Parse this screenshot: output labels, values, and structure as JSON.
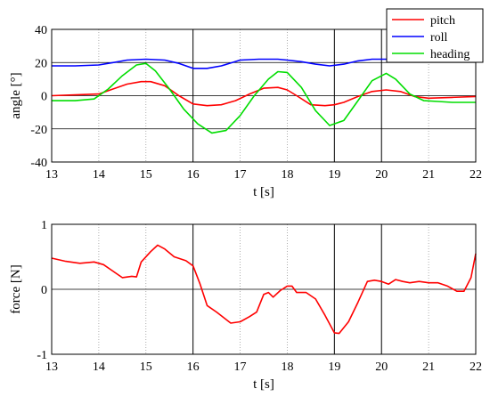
{
  "chart_data": [
    {
      "type": "line",
      "xlabel": "t [s]",
      "ylabel": "angle [°]",
      "xlim": [
        13,
        22
      ],
      "ylim": [
        -40,
        40
      ],
      "xticks": [
        13,
        14,
        15,
        16,
        17,
        18,
        19,
        20,
        21,
        22
      ],
      "yticks": [
        -40,
        -20,
        0,
        20,
        40
      ],
      "grid": "dotted vertical at each second, solid horizontal at 0 and ±20, solid vertical at 16, 19, 20",
      "legend_position": "top-right",
      "series": [
        {
          "name": "pitch",
          "color": "#ff0000",
          "x": [
            13,
            13.5,
            14,
            14.3,
            14.6,
            14.9,
            15.1,
            15.4,
            15.7,
            16,
            16.3,
            16.6,
            16.9,
            17.2,
            17.5,
            17.8,
            18,
            18.2,
            18.5,
            18.8,
            19,
            19.2,
            19.5,
            19.8,
            20.1,
            20.4,
            20.7,
            21,
            21.5,
            22
          ],
          "y": [
            0,
            0.5,
            1,
            4,
            7,
            8.5,
            8.5,
            6,
            0,
            -5,
            -6,
            -5.5,
            -3,
            1,
            4.5,
            5,
            3.5,
            0,
            -5.5,
            -6,
            -5.5,
            -4,
            -0.5,
            2.5,
            3.5,
            2.5,
            -0.5,
            -1.5,
            -1,
            -0.5
          ]
        },
        {
          "name": "roll",
          "color": "#0000ff",
          "x": [
            13,
            13.5,
            14,
            14.3,
            14.6,
            15,
            15.4,
            15.7,
            16,
            16.3,
            16.6,
            17,
            17.4,
            17.8,
            18,
            18.3,
            18.6,
            18.9,
            19.2,
            19.5,
            19.8,
            20.1,
            20.5,
            21,
            21.5,
            22
          ],
          "y": [
            18,
            18,
            18.5,
            20,
            21.5,
            22,
            21.5,
            19.5,
            16.5,
            16.5,
            18,
            21.5,
            22,
            22,
            21.5,
            20.5,
            19,
            18,
            19,
            21,
            22,
            22,
            21.5,
            21.5,
            22,
            22
          ]
        },
        {
          "name": "heading",
          "color": "#00dd00",
          "x": [
            13,
            13.5,
            13.9,
            14.2,
            14.5,
            14.8,
            15,
            15.2,
            15.5,
            15.8,
            16.1,
            16.4,
            16.7,
            17,
            17.3,
            17.6,
            17.8,
            18,
            18.3,
            18.6,
            18.9,
            19.2,
            19.5,
            19.8,
            20.1,
            20.3,
            20.6,
            20.9,
            21.2,
            21.5,
            22
          ],
          "y": [
            -3,
            -3,
            -2,
            4,
            12,
            18.5,
            19.5,
            15,
            4,
            -8,
            -17,
            -22.5,
            -21,
            -12,
            0,
            10,
            14.5,
            14,
            5,
            -9,
            -18,
            -15,
            -3,
            9,
            13.5,
            10,
            1,
            -3,
            -3.5,
            -4,
            -4
          ]
        }
      ]
    },
    {
      "type": "line",
      "xlabel": "t [s]",
      "ylabel": "force [N]",
      "xlim": [
        13,
        22
      ],
      "ylim": [
        -1,
        1
      ],
      "xticks": [
        13,
        14,
        15,
        16,
        17,
        18,
        19,
        20,
        21,
        22
      ],
      "yticks": [
        -1,
        0,
        1
      ],
      "grid": "dotted vertical at each second, solid horizontal at 0, solid vertical at 16, 19, 20",
      "series": [
        {
          "color": "#ff0000",
          "x": [
            13,
            13.3,
            13.6,
            13.9,
            14.1,
            14.3,
            14.5,
            14.7,
            14.8,
            14.9,
            15.1,
            15.25,
            15.4,
            15.6,
            15.85,
            16,
            16.15,
            16.3,
            16.5,
            16.8,
            17,
            17.2,
            17.35,
            17.5,
            17.6,
            17.7,
            17.85,
            18,
            18.1,
            18.2,
            18.4,
            18.6,
            18.8,
            19,
            19.1,
            19.3,
            19.5,
            19.7,
            19.85,
            20,
            20.15,
            20.3,
            20.45,
            20.6,
            20.8,
            21,
            21.2,
            21.4,
            21.6,
            21.75,
            21.9,
            22
          ],
          "y": [
            0.48,
            0.43,
            0.4,
            0.42,
            0.38,
            0.28,
            0.18,
            0.2,
            0.19,
            0.42,
            0.58,
            0.68,
            0.62,
            0.5,
            0.44,
            0.36,
            0.08,
            -0.25,
            -0.35,
            -0.52,
            -0.5,
            -0.42,
            -0.35,
            -0.08,
            -0.05,
            -0.12,
            -0.02,
            0.05,
            0.05,
            -0.05,
            -0.05,
            -0.15,
            -0.4,
            -0.67,
            -0.68,
            -0.5,
            -0.2,
            0.12,
            0.14,
            0.12,
            0.08,
            0.15,
            0.12,
            0.1,
            0.12,
            0.1,
            0.1,
            0.05,
            -0.03,
            -0.03,
            0.18,
            0.55
          ]
        }
      ]
    }
  ]
}
